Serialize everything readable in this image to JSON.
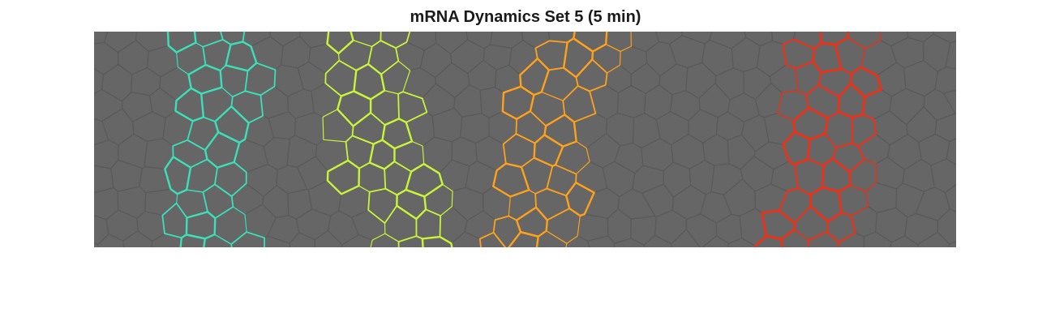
{
  "figure": {
    "title": "mRNA Dynamics Set 5 (5 min)"
  },
  "colors": {
    "background_cells": "#666666",
    "cell_edges": "#5a5a5a",
    "stripes": [
      "#3be0b9",
      "#c8f53a",
      "#ffa11a",
      "#ff2a0d"
    ]
  }
}
